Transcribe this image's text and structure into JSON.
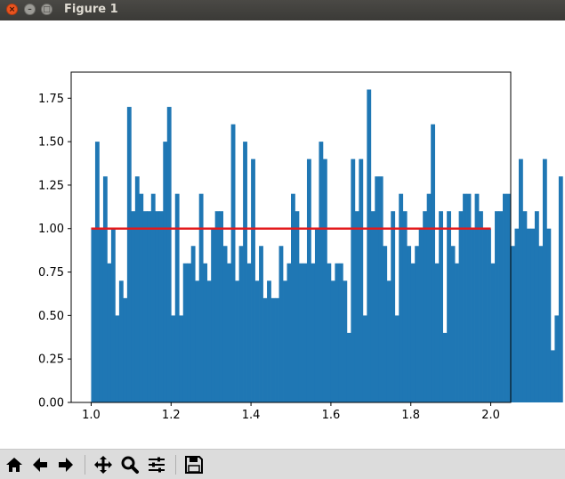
{
  "window": {
    "title": "Figure 1"
  },
  "toolbar": {
    "buttons": [
      {
        "name": "home-button",
        "icon": "home-icon"
      },
      {
        "name": "back-button",
        "icon": "arrow-left-icon"
      },
      {
        "name": "forward-button",
        "icon": "arrow-right-icon"
      },
      {
        "name": "pan-button",
        "icon": "move-icon"
      },
      {
        "name": "zoom-button",
        "icon": "magnifier-icon"
      },
      {
        "name": "configure-subplots-button",
        "icon": "sliders-icon"
      },
      {
        "name": "save-button",
        "icon": "floppy-disk-icon"
      }
    ]
  },
  "chart_data": {
    "type": "bar",
    "title": "",
    "xlabel": "",
    "ylabel": "",
    "xlim": [
      0.95,
      2.05
    ],
    "ylim": [
      0,
      1.9
    ],
    "xticks": [
      "1.0",
      "1.2",
      "1.4",
      "1.6",
      "1.8",
      "2.0"
    ],
    "yticks": [
      "0.00",
      "0.25",
      "0.50",
      "0.75",
      "1.00",
      "1.25",
      "1.50",
      "1.75"
    ],
    "bins": {
      "start": 1.0,
      "width": 0.01
    },
    "values": [
      1.0,
      1.5,
      1.0,
      1.3,
      0.8,
      1.0,
      0.5,
      0.7,
      0.6,
      1.7,
      1.1,
      1.3,
      1.2,
      1.1,
      1.1,
      1.2,
      1.1,
      1.1,
      1.5,
      1.7,
      0.5,
      1.2,
      0.5,
      0.8,
      0.8,
      0.9,
      0.7,
      1.2,
      0.8,
      0.7,
      1.0,
      1.1,
      1.1,
      0.9,
      0.8,
      1.6,
      0.7,
      0.9,
      1.5,
      0.8,
      1.4,
      0.7,
      0.9,
      0.6,
      0.7,
      0.6,
      0.6,
      0.9,
      0.7,
      0.8,
      1.2,
      1.1,
      0.8,
      0.8,
      1.4,
      0.8,
      1.0,
      1.5,
      1.4,
      0.8,
      0.7,
      0.8,
      0.8,
      0.7,
      0.4,
      1.4,
      1.1,
      1.4,
      0.5,
      1.8,
      1.1,
      1.3,
      1.3,
      0.9,
      0.7,
      1.1,
      0.5,
      1.2,
      1.1,
      0.9,
      0.8,
      0.9,
      1.0,
      1.1,
      1.2,
      1.6,
      0.8,
      1.1,
      0.4,
      1.1,
      0.9,
      0.8,
      1.1,
      1.2,
      1.2,
      1.0,
      1.2,
      1.1,
      1.0,
      1.0,
      0.8,
      1.1,
      1.1,
      1.2,
      1.2,
      0.9,
      1.0,
      1.4,
      1.1,
      1.0,
      1.0,
      1.1,
      0.9,
      1.4,
      1.0,
      0.3,
      0.5,
      1.3
    ],
    "bar_color": "#1f77b4",
    "reference_line": {
      "x": [
        1.0,
        2.0
      ],
      "y": 1.0,
      "color": "#e31a1c"
    },
    "grid": false
  }
}
